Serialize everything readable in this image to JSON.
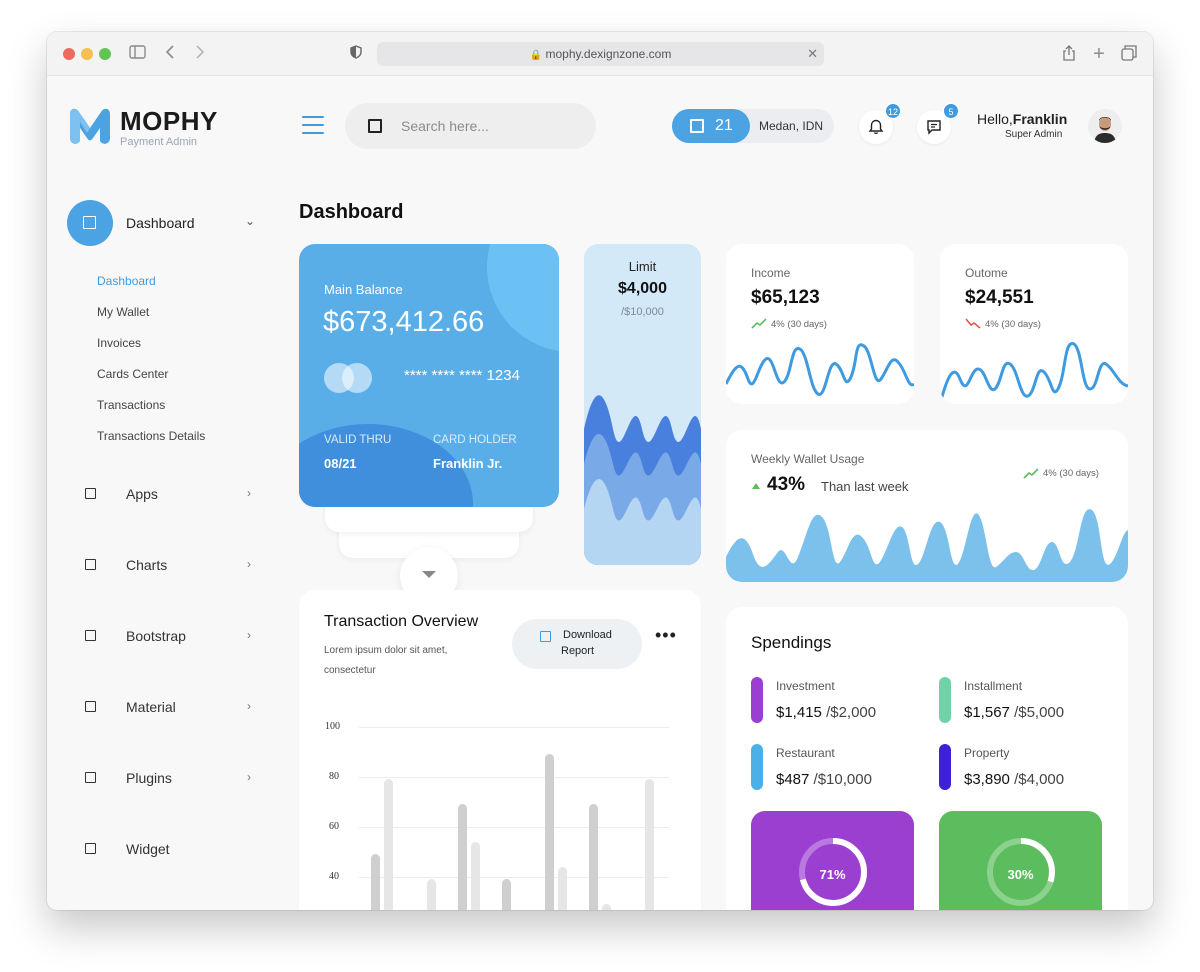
{
  "browser": {
    "url": "mophy.dexignzone.com"
  },
  "brand": {
    "title": "MOPHY",
    "subtitle": "Payment Admin"
  },
  "search": {
    "placeholder": "Search here..."
  },
  "weather": {
    "temp": "21",
    "location": "Medan, IDN"
  },
  "notifications": {
    "bell_count": "12",
    "chat_count": "5"
  },
  "user": {
    "greeting": "Hello,",
    "name": "Franklin",
    "role": "Super Admin"
  },
  "sidebar": {
    "main": "Dashboard",
    "subitems": [
      "Dashboard",
      "My Wallet",
      "Invoices",
      "Cards Center",
      "Transactions",
      "Transactions Details"
    ],
    "items": [
      {
        "label": "Apps"
      },
      {
        "label": "Charts"
      },
      {
        "label": "Bootstrap"
      },
      {
        "label": "Material"
      },
      {
        "label": "Plugins"
      },
      {
        "label": "Widget"
      }
    ]
  },
  "page": {
    "title": "Dashboard"
  },
  "balance": {
    "label": "Main Balance",
    "amount": "$673,412.66",
    "card_number": "**** **** **** 1234",
    "valid_label": "VALID THRU",
    "valid_value": "08/21",
    "holder_label": "CARD HOLDER",
    "holder_value": "Franklin Jr."
  },
  "limit": {
    "label": "Limit",
    "value": "$4,000",
    "of": "/$10,000"
  },
  "income": {
    "label": "Income",
    "value": "$65,123",
    "trend": "4% (30 days)"
  },
  "outcome": {
    "label": "Outome",
    "value": "$24,551",
    "trend": "4% (30 days)"
  },
  "weekly": {
    "label": "Weekly Wallet Usage",
    "percent": "43%",
    "note": "Than last week",
    "trend": "4% (30 days)"
  },
  "transaction": {
    "title": "Transaction Overview",
    "desc": "Lorem ipsum dolor sit amet, consectetur",
    "download_line1": "Download",
    "download_line2": "Report",
    "y_ticks": [
      "100",
      "80",
      "60",
      "40"
    ]
  },
  "spendings": {
    "title": "Spendings",
    "items": [
      {
        "name": "Investment",
        "value": "$1,415",
        "of": "/$2,000",
        "color": "#9b3fd1"
      },
      {
        "name": "Installment",
        "value": "$1,567",
        "of": "/$5,000",
        "color": "#6fd2a8"
      },
      {
        "name": "Restaurant",
        "value": "$487",
        "of": "/$10,000",
        "color": "#4bb0e8"
      },
      {
        "name": "Property",
        "value": "$3,890",
        "of": "/$4,000",
        "color": "#3d21d6"
      }
    ],
    "tiles": [
      {
        "value": "71%",
        "progress": 0.71,
        "color": "#9b3fd1"
      },
      {
        "value": "30%",
        "progress": 0.3,
        "color": "#5bbd5e"
      }
    ]
  },
  "colors": {
    "accent": "#4ba3e3",
    "income_trend": "#5bbd5e",
    "outcome_trend": "#e0584f"
  }
}
